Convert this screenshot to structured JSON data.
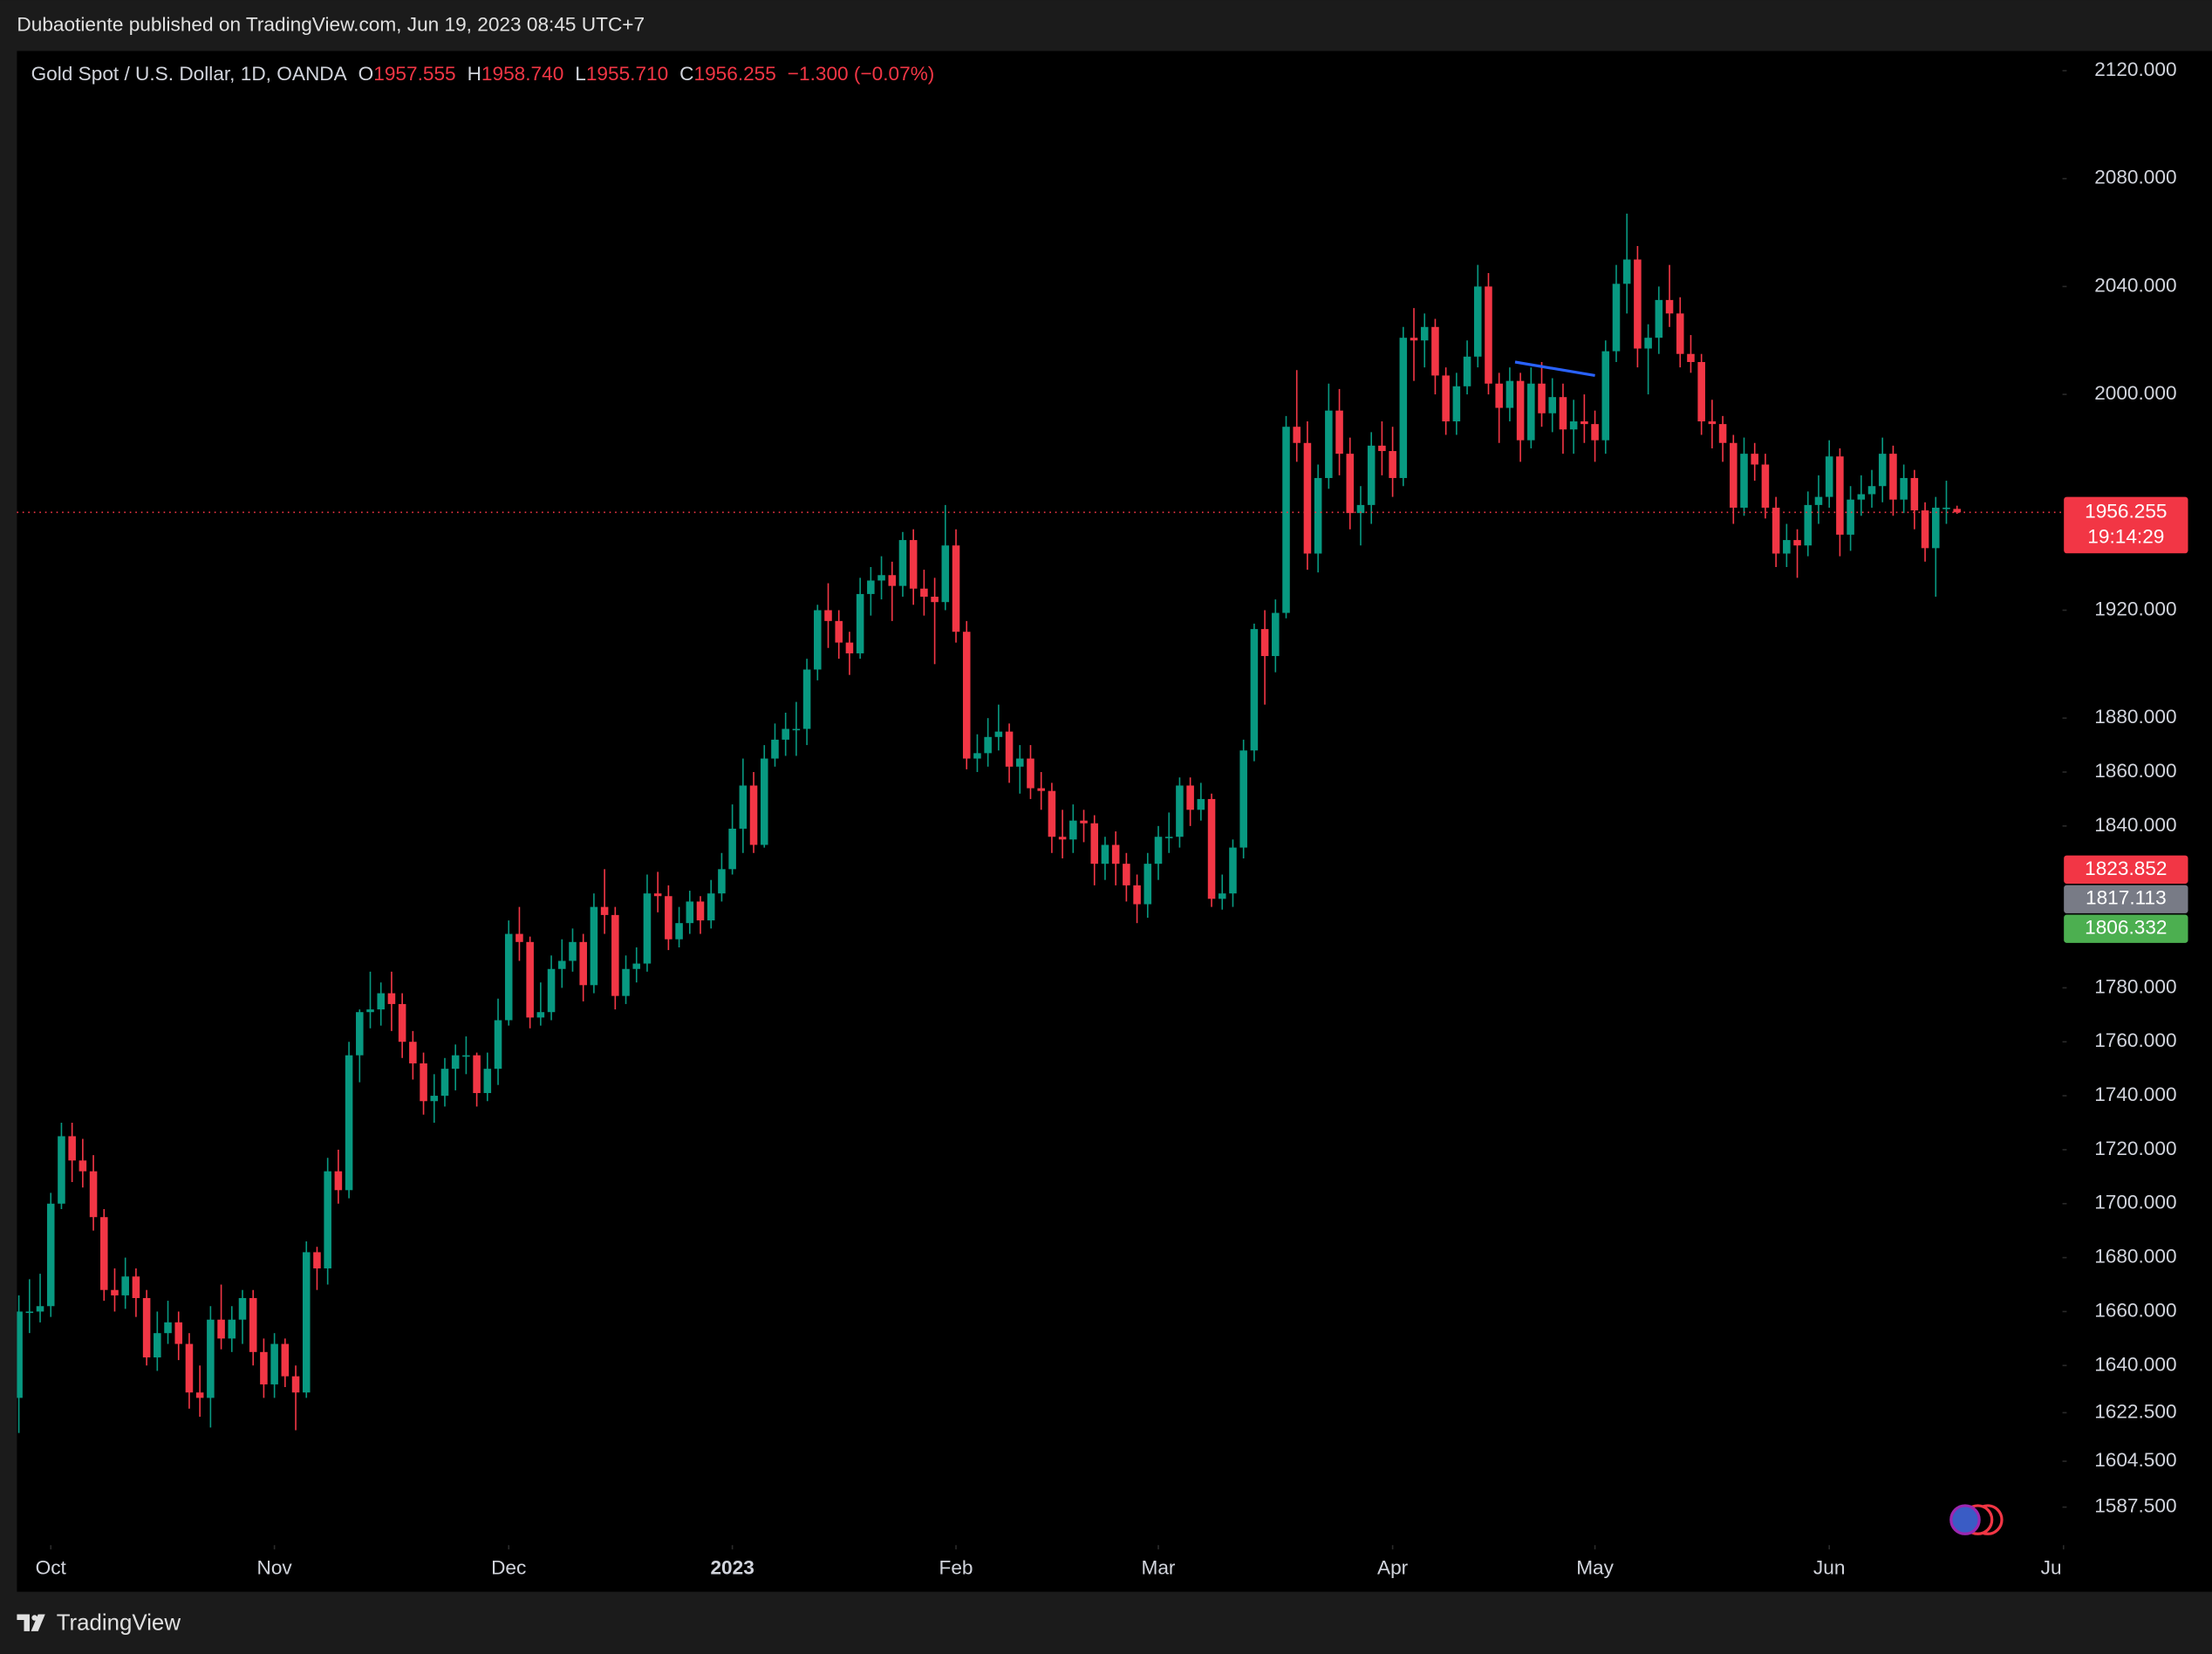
{
  "header": "Dubaotiente published on TradingView.com, Jun 19, 2023 08:45 UTC+7",
  "footer": "TradingView",
  "chart_data": {
    "type": "candlestick",
    "legend": {
      "symbol": "Gold Spot / U.S. Dollar, 1D, OANDA",
      "o_label": "O",
      "o": "1957.555",
      "h_label": "H",
      "h": "1958.740",
      "l_label": "L",
      "l": "1955.710",
      "c_label": "C",
      "c": "1956.255",
      "change": "−1.300 (−0.07%)"
    },
    "up_color": "#089981",
    "down_color": "#f23645",
    "ohlc": [
      [
        1628,
        1666,
        1615,
        1660
      ],
      [
        1660,
        1672,
        1652,
        1660
      ],
      [
        1660,
        1674,
        1656,
        1662
      ],
      [
        1662,
        1704,
        1658,
        1700
      ],
      [
        1700,
        1730,
        1698,
        1725
      ],
      [
        1725,
        1730,
        1708,
        1716
      ],
      [
        1716,
        1724,
        1706,
        1712
      ],
      [
        1712,
        1718,
        1690,
        1695
      ],
      [
        1695,
        1698,
        1664,
        1668
      ],
      [
        1668,
        1676,
        1660,
        1666
      ],
      [
        1666,
        1680,
        1661,
        1673
      ],
      [
        1673,
        1676,
        1658,
        1665
      ],
      [
        1665,
        1668,
        1640,
        1643
      ],
      [
        1643,
        1660,
        1638,
        1652
      ],
      [
        1652,
        1664,
        1648,
        1656
      ],
      [
        1656,
        1660,
        1642,
        1648
      ],
      [
        1648,
        1652,
        1624,
        1630
      ],
      [
        1630,
        1640,
        1621,
        1628
      ],
      [
        1628,
        1662,
        1617,
        1657
      ],
      [
        1657,
        1670,
        1646,
        1650
      ],
      [
        1650,
        1662,
        1645,
        1657
      ],
      [
        1657,
        1668,
        1648,
        1665
      ],
      [
        1665,
        1668,
        1640,
        1645
      ],
      [
        1645,
        1650,
        1628,
        1633
      ],
      [
        1633,
        1652,
        1628,
        1648
      ],
      [
        1648,
        1650,
        1632,
        1636
      ],
      [
        1636,
        1640,
        1616,
        1630
      ],
      [
        1630,
        1686,
        1628,
        1682
      ],
      [
        1682,
        1684,
        1668,
        1676
      ],
      [
        1676,
        1717,
        1670,
        1712
      ],
      [
        1712,
        1720,
        1700,
        1705
      ],
      [
        1705,
        1760,
        1702,
        1755
      ],
      [
        1755,
        1772,
        1745,
        1771
      ],
      [
        1771,
        1786,
        1765,
        1772
      ],
      [
        1772,
        1782,
        1766,
        1778
      ],
      [
        1778,
        1786,
        1764,
        1774
      ],
      [
        1774,
        1778,
        1754,
        1760
      ],
      [
        1760,
        1764,
        1746,
        1752
      ],
      [
        1752,
        1756,
        1733,
        1738
      ],
      [
        1738,
        1748,
        1730,
        1740
      ],
      [
        1740,
        1754,
        1736,
        1750
      ],
      [
        1750,
        1759,
        1742,
        1755
      ],
      [
        1755,
        1762,
        1748,
        1755
      ],
      [
        1755,
        1756,
        1736,
        1741
      ],
      [
        1741,
        1756,
        1738,
        1750
      ],
      [
        1750,
        1776,
        1744,
        1768
      ],
      [
        1768,
        1805,
        1766,
        1800
      ],
      [
        1800,
        1810,
        1790,
        1797
      ],
      [
        1797,
        1799,
        1765,
        1769
      ],
      [
        1769,
        1782,
        1766,
        1771
      ],
      [
        1771,
        1792,
        1768,
        1787
      ],
      [
        1787,
        1798,
        1780,
        1790
      ],
      [
        1790,
        1802,
        1786,
        1797
      ],
      [
        1797,
        1800,
        1775,
        1781
      ],
      [
        1781,
        1815,
        1778,
        1810
      ],
      [
        1810,
        1824,
        1800,
        1807
      ],
      [
        1807,
        1810,
        1772,
        1777
      ],
      [
        1777,
        1792,
        1774,
        1787
      ],
      [
        1787,
        1795,
        1782,
        1789
      ],
      [
        1789,
        1822,
        1786,
        1815
      ],
      [
        1815,
        1823,
        1808,
        1814
      ],
      [
        1814,
        1818,
        1794,
        1798
      ],
      [
        1798,
        1810,
        1795,
        1804
      ],
      [
        1804,
        1816,
        1800,
        1812
      ],
      [
        1812,
        1814,
        1800,
        1805
      ],
      [
        1805,
        1820,
        1802,
        1815
      ],
      [
        1815,
        1830,
        1812,
        1824
      ],
      [
        1824,
        1848,
        1822,
        1839
      ],
      [
        1839,
        1865,
        1830,
        1855
      ],
      [
        1855,
        1860,
        1830,
        1833
      ],
      [
        1833,
        1870,
        1832,
        1865
      ],
      [
        1865,
        1878,
        1862,
        1872
      ],
      [
        1872,
        1882,
        1866,
        1876
      ],
      [
        1876,
        1886,
        1866,
        1876
      ],
      [
        1876,
        1902,
        1870,
        1898
      ],
      [
        1898,
        1922,
        1894,
        1920
      ],
      [
        1920,
        1930,
        1906,
        1916
      ],
      [
        1916,
        1920,
        1902,
        1908
      ],
      [
        1908,
        1912,
        1896,
        1904
      ],
      [
        1904,
        1932,
        1902,
        1926
      ],
      [
        1926,
        1936,
        1918,
        1931
      ],
      [
        1931,
        1940,
        1924,
        1933
      ],
      [
        1933,
        1938,
        1916,
        1929
      ],
      [
        1929,
        1949,
        1925,
        1946
      ],
      [
        1946,
        1950,
        1922,
        1928
      ],
      [
        1928,
        1935,
        1918,
        1925
      ],
      [
        1925,
        1932,
        1900,
        1923
      ],
      [
        1923,
        1959,
        1920,
        1944
      ],
      [
        1944,
        1950,
        1908,
        1912
      ],
      [
        1912,
        1916,
        1861,
        1865
      ],
      [
        1865,
        1874,
        1860,
        1867
      ],
      [
        1867,
        1880,
        1862,
        1873
      ],
      [
        1873,
        1885,
        1868,
        1875
      ],
      [
        1875,
        1878,
        1856,
        1862
      ],
      [
        1862,
        1870,
        1852,
        1865
      ],
      [
        1865,
        1870,
        1850,
        1854
      ],
      [
        1854,
        1860,
        1846,
        1853
      ],
      [
        1853,
        1856,
        1830,
        1836
      ],
      [
        1836,
        1846,
        1828,
        1835
      ],
      [
        1835,
        1848,
        1830,
        1842
      ],
      [
        1842,
        1846,
        1834,
        1841
      ],
      [
        1841,
        1844,
        1818,
        1826
      ],
      [
        1826,
        1836,
        1820,
        1833
      ],
      [
        1833,
        1838,
        1818,
        1826
      ],
      [
        1826,
        1830,
        1812,
        1818
      ],
      [
        1818,
        1822,
        1804,
        1811
      ],
      [
        1811,
        1830,
        1806,
        1826
      ],
      [
        1826,
        1840,
        1820,
        1836
      ],
      [
        1836,
        1845,
        1830,
        1836
      ],
      [
        1836,
        1858,
        1832,
        1855
      ],
      [
        1855,
        1858,
        1840,
        1846
      ],
      [
        1846,
        1856,
        1842,
        1850
      ],
      [
        1850,
        1852,
        1810,
        1813
      ],
      [
        1813,
        1822,
        1809,
        1815
      ],
      [
        1815,
        1835,
        1810,
        1832
      ],
      [
        1832,
        1872,
        1828,
        1868
      ],
      [
        1868,
        1915,
        1864,
        1913
      ],
      [
        1913,
        1920,
        1885,
        1903
      ],
      [
        1903,
        1924,
        1897,
        1919
      ],
      [
        1919,
        1992,
        1917,
        1988
      ],
      [
        1988,
        2009,
        1975,
        1982
      ],
      [
        1982,
        1990,
        1935,
        1941
      ],
      [
        1941,
        1974,
        1934,
        1969
      ],
      [
        1969,
        2004,
        1965,
        1994
      ],
      [
        1994,
        2002,
        1970,
        1978
      ],
      [
        1978,
        1984,
        1950,
        1956
      ],
      [
        1956,
        1966,
        1944,
        1959
      ],
      [
        1959,
        1986,
        1952,
        1981
      ],
      [
        1981,
        1990,
        1970,
        1979
      ],
      [
        1979,
        1988,
        1962,
        1969
      ],
      [
        1969,
        2025,
        1966,
        2021
      ],
      [
        2021,
        2032,
        2005,
        2020
      ],
      [
        2020,
        2030,
        2010,
        2025
      ],
      [
        2025,
        2028,
        2000,
        2007
      ],
      [
        2007,
        2010,
        1985,
        1990
      ],
      [
        1990,
        2008,
        1985,
        2003
      ],
      [
        2003,
        2020,
        2000,
        2014
      ],
      [
        2014,
        2048,
        2010,
        2040
      ],
      [
        2040,
        2045,
        2000,
        2004
      ],
      [
        2004,
        2008,
        1982,
        1995
      ],
      [
        1995,
        2010,
        1990,
        2005
      ],
      [
        2005,
        2008,
        1975,
        1983
      ],
      [
        1983,
        2010,
        1980,
        2004
      ],
      [
        2004,
        2012,
        1988,
        1993
      ],
      [
        1993,
        2006,
        1986,
        1999
      ],
      [
        1999,
        2004,
        1978,
        1987
      ],
      [
        1987,
        1998,
        1978,
        1990
      ],
      [
        1990,
        2000,
        1982,
        1989
      ],
      [
        1989,
        1994,
        1975,
        1983
      ],
      [
        1983,
        2020,
        1978,
        2016
      ],
      [
        2016,
        2048,
        2012,
        2041
      ],
      [
        2041,
        2067,
        2030,
        2050
      ],
      [
        2050,
        2055,
        2010,
        2017
      ],
      [
        2017,
        2026,
        2000,
        2021
      ],
      [
        2021,
        2040,
        2015,
        2035
      ],
      [
        2035,
        2048,
        2025,
        2030
      ],
      [
        2030,
        2036,
        2010,
        2015
      ],
      [
        2015,
        2022,
        2008,
        2012
      ],
      [
        2012,
        2015,
        1985,
        1990
      ],
      [
        1990,
        1998,
        1980,
        1989
      ],
      [
        1989,
        1992,
        1975,
        1982
      ],
      [
        1982,
        1985,
        1952,
        1958
      ],
      [
        1958,
        1984,
        1955,
        1978
      ],
      [
        1978,
        1982,
        1968,
        1974
      ],
      [
        1974,
        1978,
        1954,
        1958
      ],
      [
        1958,
        1962,
        1936,
        1941
      ],
      [
        1941,
        1952,
        1936,
        1946
      ],
      [
        1946,
        1950,
        1932,
        1944
      ],
      [
        1944,
        1964,
        1940,
        1959
      ],
      [
        1959,
        1970,
        1952,
        1962
      ],
      [
        1962,
        1983,
        1958,
        1977
      ],
      [
        1977,
        1980,
        1940,
        1948
      ],
      [
        1948,
        1966,
        1942,
        1961
      ],
      [
        1961,
        1970,
        1955,
        1963
      ],
      [
        1963,
        1972,
        1958,
        1966
      ],
      [
        1966,
        1984,
        1960,
        1978
      ],
      [
        1978,
        1981,
        1955,
        1961
      ],
      [
        1961,
        1974,
        1956,
        1969
      ],
      [
        1969,
        1972,
        1950,
        1957
      ],
      [
        1957,
        1960,
        1938,
        1943
      ],
      [
        1943,
        1962,
        1925,
        1958
      ],
      [
        1958,
        1968,
        1952,
        1958
      ],
      [
        1957.555,
        1958.74,
        1955.71,
        1956.255
      ]
    ],
    "xlim": [
      -0.18,
      191.9
    ],
    "xticks": [
      {
        "value": 3,
        "label": "Oct"
      },
      {
        "value": 24,
        "label": "Nov"
      },
      {
        "value": 46,
        "label": "Dec"
      },
      {
        "value": 67,
        "label": "2023"
      },
      {
        "value": 88,
        "label": "Feb"
      },
      {
        "value": 107,
        "label": "Mar"
      },
      {
        "value": 129,
        "label": "Apr"
      },
      {
        "value": 148,
        "label": "May"
      },
      {
        "value": 170,
        "label": "Jun"
      },
      {
        "value": 192,
        "label": "Ju"
      }
    ],
    "ylim": [
      1573.4,
      2127.3
    ],
    "yticks": [
      {
        "value": 2120,
        "label": "2120.000"
      },
      {
        "value": 2080,
        "label": "2080.000"
      },
      {
        "value": 2040,
        "label": "2040.000"
      },
      {
        "value": 2000,
        "label": "2000.000"
      },
      {
        "value": 1920,
        "label": "1920.000"
      },
      {
        "value": 1880,
        "label": "1880.000"
      },
      {
        "value": 1860,
        "label": "1860.000"
      },
      {
        "value": 1840,
        "label": "1840.000"
      },
      {
        "value": 1780,
        "label": "1780.000"
      },
      {
        "value": 1760,
        "label": "1760.000"
      },
      {
        "value": 1740,
        "label": "1740.000"
      },
      {
        "value": 1720,
        "label": "1720.000"
      },
      {
        "value": 1700,
        "label": "1700.000"
      },
      {
        "value": 1680,
        "label": "1680.000"
      },
      {
        "value": 1660,
        "label": "1660.000"
      },
      {
        "value": 1640,
        "label": "1640.000"
      },
      {
        "value": 1622.5,
        "label": "1622.500"
      },
      {
        "value": 1604.5,
        "label": "1604.500"
      },
      {
        "value": 1587.5,
        "label": "1587.500"
      }
    ],
    "trendline": {
      "color": "#2962ff",
      "x": [
        140.5,
        148
      ],
      "y": [
        2012,
        2007
      ]
    },
    "last_price": {
      "value": 1956.255,
      "label": "1956.255",
      "countdown": "19:14:29",
      "color": "#f23645"
    },
    "price_labels": [
      {
        "value": 1823.852,
        "label": "1823.852",
        "color": "#f23645"
      },
      {
        "value": 1817.113,
        "label": "1817.113",
        "color": "#787b86"
      },
      {
        "value": 1806.332,
        "label": "1806.332",
        "color": "#4caf50"
      }
    ]
  }
}
